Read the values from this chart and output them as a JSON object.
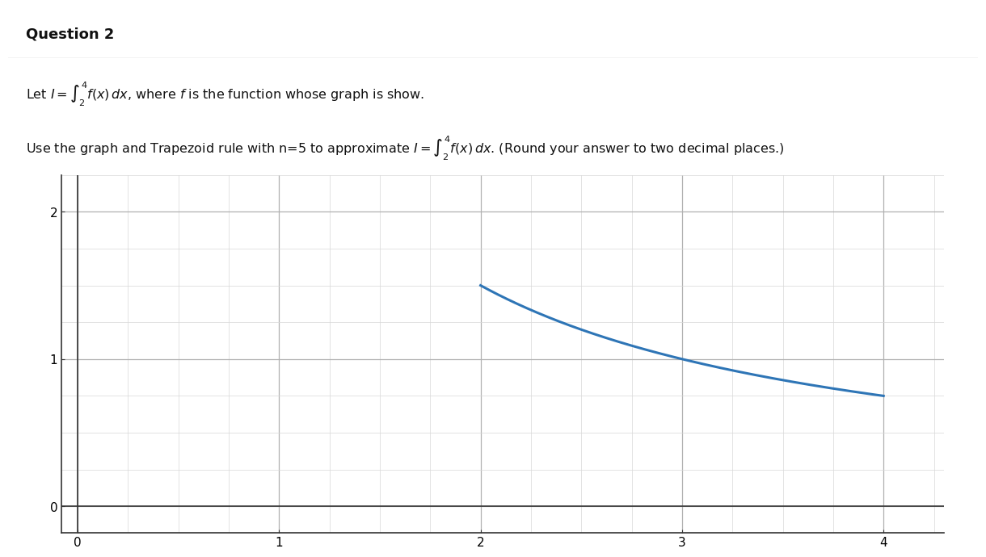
{
  "title": "Question 2",
  "text_line1": "Let $I = \\int_2^4 f(x)\\,dx$, where $f$ is the function whose graph is show.",
  "text_line2": "Use the graph and Trapezoid rule with n=5 to approximate $I = \\int_2^4 f(x)\\,dx$. (Round your answer to two decimal places.)",
  "curve_x_start": 2.0,
  "curve_x_end": 4.0,
  "curve_coeff": 3.0,
  "xlim": [
    -0.08,
    4.3
  ],
  "ylim": [
    -0.18,
    2.25
  ],
  "xticks": [
    0,
    1,
    2,
    3,
    4
  ],
  "yticks": [
    0,
    1,
    2
  ],
  "curve_color": "#2E75B6",
  "curve_linewidth": 2.2,
  "minor_grid_color": "#d8d8d8",
  "major_grid_color": "#b0b0b0",
  "axis_color": "#333333",
  "bg_color": "#ffffff",
  "header_bg": "#ebebeb",
  "header_text": "Question 2",
  "header_fontsize": 13,
  "text_fontsize": 11.5,
  "tick_labelsize": 11
}
